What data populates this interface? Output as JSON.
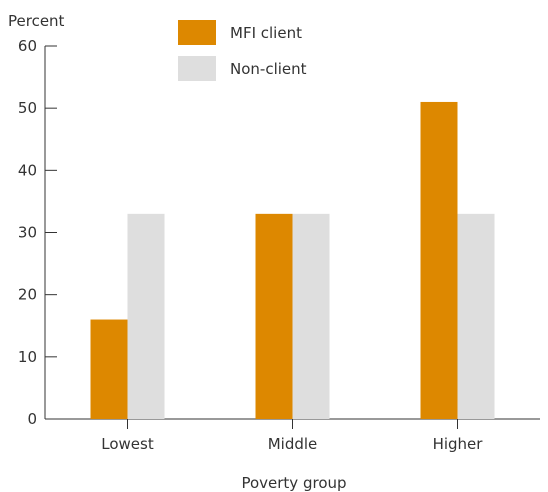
{
  "chart_data": {
    "type": "bar",
    "categories": [
      "Lowest",
      "Middle",
      "Higher"
    ],
    "series": [
      {
        "name": "MFI client",
        "values": [
          16,
          33,
          51
        ],
        "color": "#dd8800"
      },
      {
        "name": "Non-client",
        "values": [
          33,
          33,
          33
        ],
        "color": "#dedede"
      }
    ],
    "ylabel": "Percent",
    "xlabel": "Poverty group",
    "ylim": [
      0,
      60
    ],
    "yticks": [
      0,
      10,
      20,
      30,
      40,
      50,
      60
    ],
    "grid": false,
    "legend_position": "top"
  }
}
